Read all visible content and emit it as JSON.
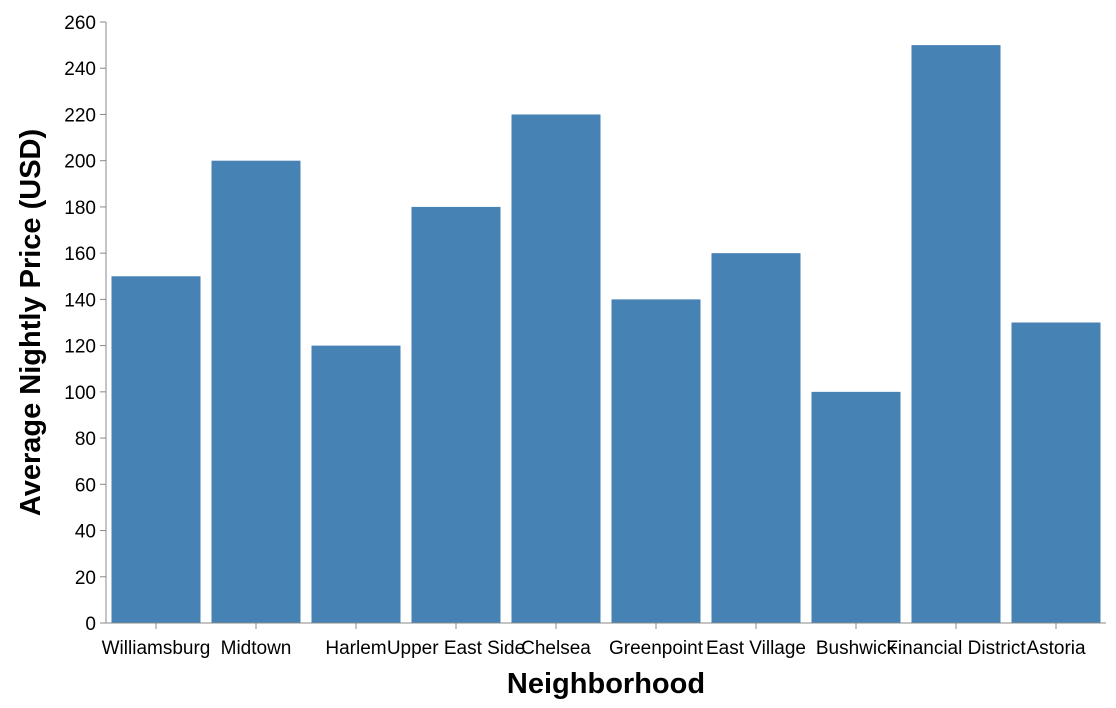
{
  "chart_data": {
    "type": "bar",
    "categories": [
      "Williamsburg",
      "Midtown",
      "Harlem",
      "Upper East Side",
      "Chelsea",
      "Greenpoint",
      "East Village",
      "Bushwick",
      "Financial District",
      "Astoria"
    ],
    "values": [
      150,
      200,
      120,
      180,
      220,
      140,
      160,
      100,
      250,
      130
    ],
    "xlabel": "Neighborhood",
    "ylabel": "Average Nightly Price (USD)",
    "ylim": [
      0,
      260
    ],
    "yticks": [
      0,
      20,
      40,
      60,
      80,
      100,
      120,
      140,
      160,
      180,
      200,
      220,
      240,
      260
    ],
    "grid": false,
    "bar_color": "#4682b4",
    "axis_color": "#888888"
  }
}
